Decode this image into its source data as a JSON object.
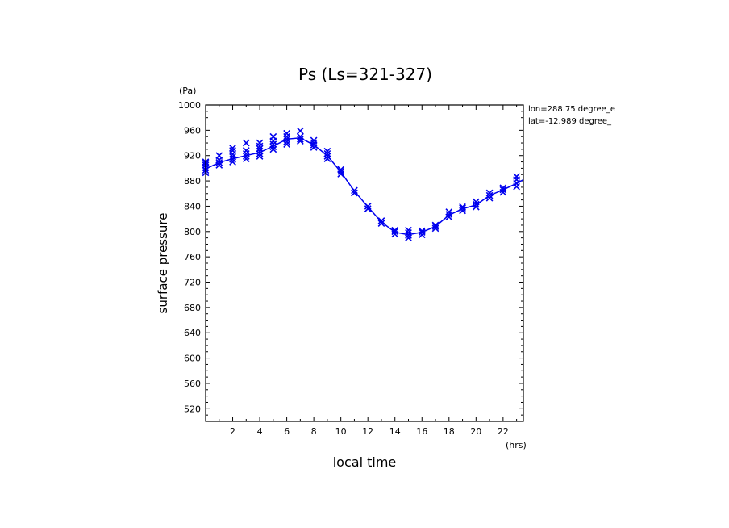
{
  "chart_data": {
    "type": "line",
    "title": "Ps (Ls=321-327)",
    "xlabel": "local time",
    "ylabel": "surface pressure",
    "x_unit": "(hrs)",
    "y_unit": "(Pa)",
    "annotations": [
      "lon=288.75 degree_e",
      "lat=-12.989 degree_"
    ],
    "xlim": [
      0,
      23.5
    ],
    "ylim": [
      500,
      1000
    ],
    "x_ticks": [
      2,
      4,
      6,
      8,
      10,
      12,
      14,
      16,
      18,
      20,
      22
    ],
    "y_ticks": [
      520,
      560,
      600,
      640,
      680,
      720,
      760,
      800,
      840,
      880,
      920,
      960,
      1000
    ],
    "grid": false,
    "colors": {
      "series": "#0000ee",
      "axes": "#000000"
    },
    "series": [
      {
        "style": "line",
        "x": [
          0.0,
          1.0,
          2.0,
          3.0,
          4.0,
          5.0,
          6.0,
          7.0,
          8.0,
          9.0,
          10.0,
          11.0,
          12.0,
          13.0,
          14.0,
          15.0,
          16.0,
          17.0,
          18.0,
          19.0,
          20.0,
          21.0,
          22.0,
          23.0,
          23.5
        ],
        "y": [
          899,
          909,
          915,
          920,
          925,
          935,
          946,
          948,
          937,
          920,
          894,
          864,
          839,
          815,
          799,
          795,
          799,
          808,
          826,
          836,
          842,
          857,
          866,
          876,
          882
        ]
      },
      {
        "style": "markers",
        "marker": "x",
        "x": [
          0,
          0,
          0,
          0,
          0,
          0,
          1,
          1,
          1,
          1,
          2,
          2,
          2,
          2,
          2,
          2,
          3,
          3,
          3,
          3,
          3,
          4,
          4,
          4,
          4,
          4,
          4,
          5,
          5,
          5,
          5,
          5,
          6,
          6,
          6,
          6,
          6,
          7,
          7,
          7,
          7,
          8,
          8,
          8,
          8,
          9,
          9,
          9,
          9,
          10,
          10,
          10,
          11,
          11,
          12,
          12,
          13,
          13,
          14,
          14,
          14,
          15,
          15,
          15,
          15,
          16,
          16,
          16,
          17,
          17,
          17,
          18,
          18,
          18,
          19,
          19,
          19,
          20,
          20,
          20,
          21,
          21,
          21,
          22,
          22,
          22,
          23,
          23,
          23,
          23
        ],
        "y": [
          893,
          897,
          901,
          905,
          908,
          910,
          905,
          909,
          913,
          920,
          910,
          914,
          918,
          922,
          928,
          932,
          915,
          919,
          923,
          928,
          940,
          919,
          923,
          927,
          931,
          935,
          940,
          930,
          934,
          938,
          943,
          950,
          938,
          942,
          946,
          950,
          955,
          943,
          946,
          950,
          959,
          933,
          937,
          940,
          944,
          915,
          919,
          923,
          927,
          891,
          895,
          898,
          861,
          865,
          836,
          840,
          813,
          817,
          796,
          800,
          802,
          790,
          794,
          798,
          802,
          795,
          799,
          801,
          805,
          808,
          810,
          823,
          827,
          831,
          833,
          837,
          839,
          839,
          843,
          847,
          853,
          857,
          861,
          862,
          866,
          869,
          871,
          876,
          882,
          887
        ]
      }
    ]
  }
}
